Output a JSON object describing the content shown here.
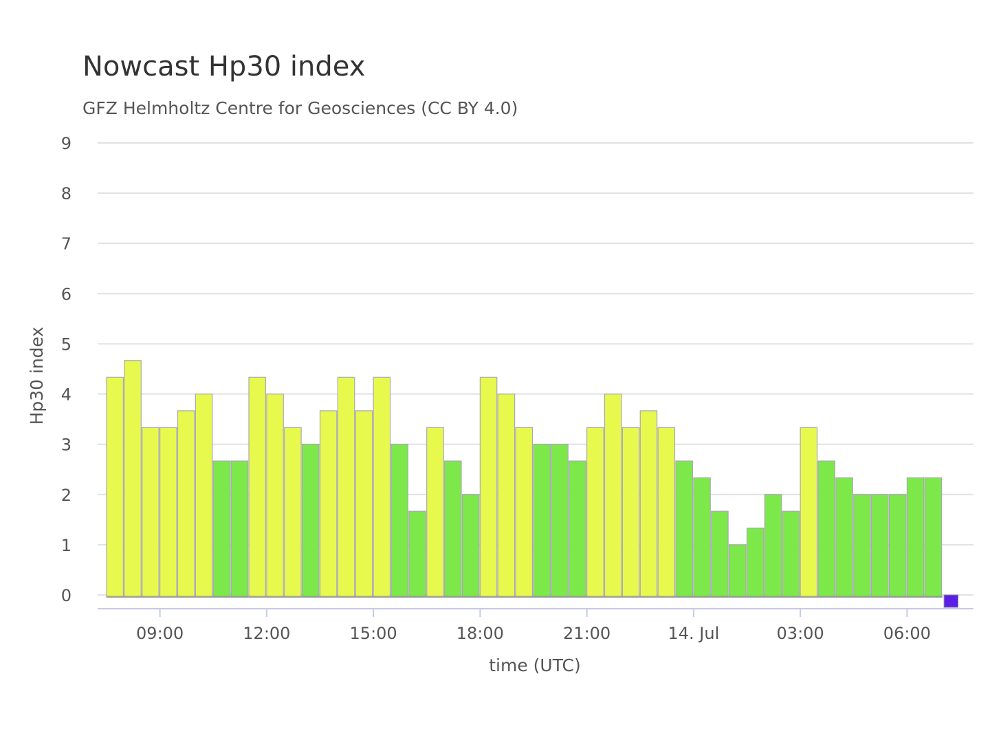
{
  "title": "Nowcast Hp30 index",
  "subtitle": "GFZ Helmholtz Centre for Geosciences (CC BY 4.0)",
  "chart_data": {
    "type": "bar",
    "title": "Nowcast Hp30 index",
    "subtitle": "GFZ Helmholtz Centre for Geosciences (CC BY 4.0)",
    "xlabel": "time (UTC)",
    "ylabel": "Hp30 index",
    "ylim": [
      0,
      9
    ],
    "y_ticks": [
      "0",
      "1",
      "2",
      "3",
      "4",
      "5",
      "6",
      "7",
      "8",
      "9"
    ],
    "grid": true,
    "bar_interval_minutes": 30,
    "x_range": [
      "13 Jul 07:30",
      "14 Jul 07:30"
    ],
    "x_ticks": [
      {
        "label": "09:00",
        "time": "13 Jul 09:00"
      },
      {
        "label": "12:00",
        "time": "13 Jul 12:00"
      },
      {
        "label": "15:00",
        "time": "13 Jul 15:00"
      },
      {
        "label": "18:00",
        "time": "13 Jul 18:00"
      },
      {
        "label": "21:00",
        "time": "13 Jul 21:00"
      },
      {
        "label": "14. Jul",
        "time": "14 Jul 00:00"
      },
      {
        "label": "03:00",
        "time": "14 Jul 03:00"
      },
      {
        "label": "06:00",
        "time": "14 Jul 06:00"
      }
    ],
    "colors": {
      "yellow": "#e8f94e",
      "green": "#7de84a",
      "blue": "#5a1ee6"
    },
    "bars": [
      {
        "time": "13 Jul 07:30",
        "value": 4.333,
        "color": "yellow"
      },
      {
        "time": "13 Jul 08:00",
        "value": 4.667,
        "color": "yellow"
      },
      {
        "time": "13 Jul 08:30",
        "value": 3.333,
        "color": "yellow"
      },
      {
        "time": "13 Jul 09:00",
        "value": 3.333,
        "color": "yellow"
      },
      {
        "time": "13 Jul 09:30",
        "value": 3.667,
        "color": "yellow"
      },
      {
        "time": "13 Jul 10:00",
        "value": 4.0,
        "color": "yellow"
      },
      {
        "time": "13 Jul 10:30",
        "value": 2.667,
        "color": "green"
      },
      {
        "time": "13 Jul 11:00",
        "value": 2.667,
        "color": "green"
      },
      {
        "time": "13 Jul 11:30",
        "value": 4.333,
        "color": "yellow"
      },
      {
        "time": "13 Jul 12:00",
        "value": 4.0,
        "color": "yellow"
      },
      {
        "time": "13 Jul 12:30",
        "value": 3.333,
        "color": "yellow"
      },
      {
        "time": "13 Jul 13:00",
        "value": 3.0,
        "color": "green"
      },
      {
        "time": "13 Jul 13:30",
        "value": 3.667,
        "color": "yellow"
      },
      {
        "time": "13 Jul 14:00",
        "value": 4.333,
        "color": "yellow"
      },
      {
        "time": "13 Jul 14:30",
        "value": 3.667,
        "color": "yellow"
      },
      {
        "time": "13 Jul 15:00",
        "value": 4.333,
        "color": "yellow"
      },
      {
        "time": "13 Jul 15:30",
        "value": 3.0,
        "color": "green"
      },
      {
        "time": "13 Jul 16:00",
        "value": 1.667,
        "color": "green"
      },
      {
        "time": "13 Jul 16:30",
        "value": 3.333,
        "color": "yellow"
      },
      {
        "time": "13 Jul 17:00",
        "value": 2.667,
        "color": "green"
      },
      {
        "time": "13 Jul 17:30",
        "value": 2.0,
        "color": "green"
      },
      {
        "time": "13 Jul 18:00",
        "value": 4.333,
        "color": "yellow"
      },
      {
        "time": "13 Jul 18:30",
        "value": 4.0,
        "color": "yellow"
      },
      {
        "time": "13 Jul 19:00",
        "value": 3.333,
        "color": "yellow"
      },
      {
        "time": "13 Jul 19:30",
        "value": 3.0,
        "color": "green"
      },
      {
        "time": "13 Jul 20:00",
        "value": 3.0,
        "color": "green"
      },
      {
        "time": "13 Jul 20:30",
        "value": 2.667,
        "color": "green"
      },
      {
        "time": "13 Jul 21:00",
        "value": 3.333,
        "color": "yellow"
      },
      {
        "time": "13 Jul 21:30",
        "value": 4.0,
        "color": "yellow"
      },
      {
        "time": "13 Jul 22:00",
        "value": 3.333,
        "color": "yellow"
      },
      {
        "time": "13 Jul 22:30",
        "value": 3.667,
        "color": "yellow"
      },
      {
        "time": "13 Jul 23:00",
        "value": 3.333,
        "color": "yellow"
      },
      {
        "time": "13 Jul 23:30",
        "value": 2.667,
        "color": "green"
      },
      {
        "time": "14 Jul 00:00",
        "value": 2.333,
        "color": "green"
      },
      {
        "time": "14 Jul 00:30",
        "value": 1.667,
        "color": "green"
      },
      {
        "time": "14 Jul 01:00",
        "value": 1.0,
        "color": "green"
      },
      {
        "time": "14 Jul 01:30",
        "value": 1.333,
        "color": "green"
      },
      {
        "time": "14 Jul 02:00",
        "value": 2.0,
        "color": "green"
      },
      {
        "time": "14 Jul 02:30",
        "value": 1.667,
        "color": "green"
      },
      {
        "time": "14 Jul 03:00",
        "value": 3.333,
        "color": "yellow"
      },
      {
        "time": "14 Jul 03:30",
        "value": 2.667,
        "color": "green"
      },
      {
        "time": "14 Jul 04:00",
        "value": 2.333,
        "color": "green"
      },
      {
        "time": "14 Jul 04:30",
        "value": 2.0,
        "color": "green"
      },
      {
        "time": "14 Jul 05:00",
        "value": 2.0,
        "color": "green"
      },
      {
        "time": "14 Jul 05:30",
        "value": 2.0,
        "color": "green"
      },
      {
        "time": "14 Jul 06:00",
        "value": 2.333,
        "color": "green"
      },
      {
        "time": "14 Jul 06:30",
        "value": 2.333,
        "color": "green"
      },
      {
        "time": "14 Jul 07:00",
        "value": 0.0,
        "color": "blue"
      }
    ]
  }
}
